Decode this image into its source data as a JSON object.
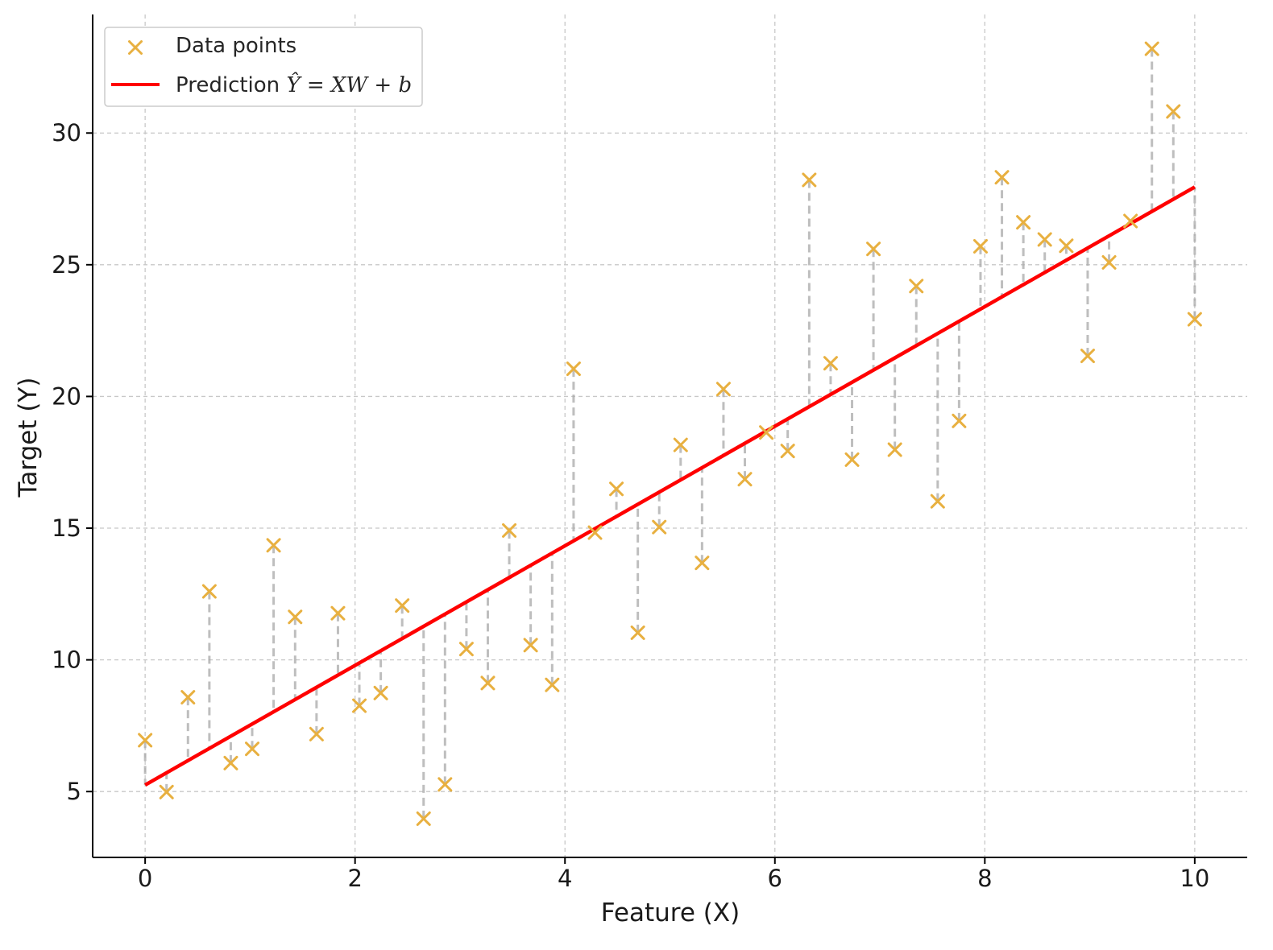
{
  "chart_data": {
    "type": "scatter",
    "xlabel": "Feature (X)",
    "ylabel": "Target (Y)",
    "xlim": [
      -0.5,
      10.5
    ],
    "ylim": [
      2.5,
      34.5
    ],
    "xticks": [
      0,
      2,
      4,
      6,
      8,
      10
    ],
    "xtick_labels": [
      "0",
      "2",
      "4",
      "6",
      "8",
      "10"
    ],
    "yticks": [
      5,
      10,
      15,
      20,
      25,
      30
    ],
    "ytick_labels": [
      "5",
      "10",
      "15",
      "20",
      "25",
      "30"
    ],
    "grid": true,
    "grid_style": "dashed",
    "legend_position": "top-left",
    "series": [
      {
        "name": "Data points",
        "kind": "scatter",
        "marker": "x",
        "color": "#E8B040",
        "x": [
          0.0,
          0.204,
          0.408,
          0.612,
          0.816,
          1.02,
          1.224,
          1.429,
          1.633,
          1.837,
          2.041,
          2.245,
          2.449,
          2.653,
          2.857,
          3.061,
          3.265,
          3.469,
          3.673,
          3.878,
          4.082,
          4.286,
          4.49,
          4.694,
          4.898,
          5.102,
          5.306,
          5.51,
          5.714,
          5.918,
          6.122,
          6.327,
          6.531,
          6.735,
          6.939,
          7.143,
          7.347,
          7.551,
          7.755,
          7.959,
          8.163,
          8.367,
          8.571,
          8.776,
          8.98,
          9.184,
          9.388,
          9.592,
          9.796,
          10.0
        ],
        "y": [
          6.95,
          4.98,
          8.58,
          12.6,
          6.08,
          6.62,
          14.35,
          11.63,
          7.18,
          11.77,
          8.26,
          8.74,
          12.06,
          3.97,
          5.27,
          10.41,
          9.12,
          14.91,
          10.56,
          9.05,
          21.05,
          14.83,
          16.49,
          11.03,
          15.04,
          18.16,
          13.68,
          20.28,
          16.86,
          18.63,
          17.93,
          28.22,
          21.26,
          17.6,
          25.6,
          17.98,
          24.19,
          16.02,
          19.07,
          25.7,
          28.32,
          26.61,
          25.96,
          25.72,
          21.54,
          25.09,
          26.66,
          33.2,
          30.82,
          22.93
        ]
      },
      {
        "name": "Prediction Ŷ = XW + b",
        "kind": "line",
        "color": "#FF0000",
        "x": [
          0,
          10
        ],
        "y": [
          5.25,
          27.95
        ]
      }
    ],
    "residuals": {
      "color": "#A9A9A9",
      "style": "dashed"
    }
  },
  "legend": {
    "items": [
      {
        "label": "Data points"
      },
      {
        "label_prefix": "Prediction ",
        "label_math": "Ŷ = XW + b"
      }
    ]
  }
}
